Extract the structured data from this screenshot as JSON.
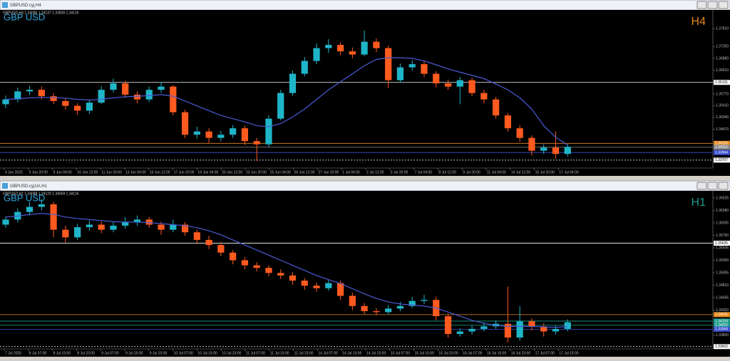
{
  "windows": [
    {
      "title": "GBPUSD.cyj,H4",
      "info": "GBPUSD,H4  1.34086 1.34137 1.33826 1.34116",
      "symbol": "GBP USD",
      "timeframe": "H4",
      "timeframe_color": "#e8891c",
      "up_color": "#1fb5c8",
      "down_color": "#ff5a1f",
      "ma_color": "#4a5cd6",
      "ylim": [
        1.3346,
        1.3839
      ],
      "yticks": [
        {
          "value": 1.3781,
          "label": "1.37810"
        },
        {
          "value": 1.3725,
          "label": "1.37250"
        },
        {
          "value": 1.3688,
          "label": "1.36880"
        },
        {
          "value": 1.3651,
          "label": "1.36510"
        },
        {
          "value": 1.3577,
          "label": "1.35770"
        },
        {
          "value": 1.3541,
          "label": "1.35410"
        },
        {
          "value": 1.3504,
          "label": "1.35040"
        },
        {
          "value": 1.3467,
          "label": "1.34670"
        }
      ],
      "levels": [
        {
          "price": 1.36131,
          "color": "#ffffff"
        },
        {
          "price": {
            "value": 1.3423,
            "label": "1.34230"
          },
          "color": "#e8891c"
        },
        {
          "price": {
            "value": 1.3411,
            "label": "1.34110"
          },
          "color": "#8a8a8a"
        },
        {
          "price": 1.33944,
          "color": "#3a4fd0"
        },
        {
          "price": 1.33707,
          "color": "#ffffff",
          "dashed": true
        }
      ],
      "time_labels": [
        "4 Jun 2025",
        "5 Jun 20:00",
        "9 Jun 04:00",
        "10 Jun 12:00",
        "11 Jun 20:00",
        "13 Jun 04:00",
        "16 Jun 12:00",
        "17 Jun 20:00",
        "19 Jun 04:00",
        "20 Jun 12:00",
        "23 Jun 20:00",
        "25 Jun 04:00",
        "26 Jun 12:00",
        "27 Jun 20:00",
        "1 Jul 04:00",
        "2 Jul 12:00",
        "3 Jul 20:00",
        "7 Jul 04:00",
        "8 Jul 12:00",
        "9 Jul 20:00",
        "11 Jul 04:00",
        "14 Jul 12:00",
        "15 Jul 20:00",
        "17 Jul 04:00"
      ],
      "candles": {
        "open": [
          1.3545,
          1.356,
          1.3585,
          1.359,
          1.357,
          1.3555,
          1.354,
          1.3525,
          1.355,
          1.359,
          1.361,
          1.3575,
          1.356,
          1.359,
          1.36,
          1.352,
          1.345,
          1.346,
          1.344,
          1.345,
          1.347,
          1.343,
          1.342,
          1.35,
          1.358,
          1.364,
          1.368,
          1.372,
          1.373,
          1.371,
          1.37,
          1.374,
          1.372,
          1.362,
          1.366,
          1.367,
          1.364,
          1.361,
          1.36,
          1.362,
          1.358,
          1.356,
          1.351,
          1.347,
          1.344,
          1.34,
          1.341,
          1.339
        ],
        "high": [
          1.3572,
          1.3597,
          1.3602,
          1.36,
          1.358,
          1.3565,
          1.3548,
          1.356,
          1.3602,
          1.3625,
          1.3618,
          1.3585,
          1.36,
          1.3615,
          1.3605,
          1.3528,
          1.3475,
          1.347,
          1.3462,
          1.348,
          1.3478,
          1.344,
          1.351,
          1.359,
          1.365,
          1.3692,
          1.3735,
          1.3748,
          1.3738,
          1.3722,
          1.3775,
          1.375,
          1.3728,
          1.3672,
          1.3682,
          1.3678,
          1.3648,
          1.3622,
          1.363,
          1.3628,
          1.359,
          1.3568,
          1.3518,
          1.348,
          1.3448,
          1.342,
          1.346,
          1.342
        ],
        "low": [
          1.3533,
          1.355,
          1.3573,
          1.356,
          1.3545,
          1.3528,
          1.3512,
          1.3515,
          1.3545,
          1.3582,
          1.3565,
          1.3548,
          1.3552,
          1.358,
          1.351,
          1.344,
          1.3438,
          1.3425,
          1.343,
          1.344,
          1.3418,
          1.3368,
          1.3412,
          1.3495,
          1.3572,
          1.3632,
          1.367,
          1.3705,
          1.3698,
          1.3688,
          1.3695,
          1.3708,
          1.3595,
          1.3612,
          1.365,
          1.363,
          1.3598,
          1.359,
          1.3545,
          1.357,
          1.3548,
          1.35,
          1.346,
          1.3428,
          1.3385,
          1.339,
          1.3375,
          1.3382
        ],
        "close": [
          1.356,
          1.3585,
          1.359,
          1.357,
          1.3555,
          1.354,
          1.3525,
          1.355,
          1.359,
          1.361,
          1.3575,
          1.356,
          1.359,
          1.36,
          1.352,
          1.345,
          1.346,
          1.344,
          1.345,
          1.347,
          1.343,
          1.342,
          1.35,
          1.358,
          1.364,
          1.368,
          1.372,
          1.373,
          1.371,
          1.37,
          1.374,
          1.372,
          1.362,
          1.366,
          1.367,
          1.364,
          1.361,
          1.36,
          1.362,
          1.358,
          1.356,
          1.351,
          1.347,
          1.344,
          1.34,
          1.341,
          1.339,
          1.3412
        ]
      },
      "ma": [
        1.356,
        1.3562,
        1.3565,
        1.3566,
        1.3566,
        1.3564,
        1.356,
        1.3558,
        1.356,
        1.3565,
        1.3568,
        1.357,
        1.3572,
        1.3575,
        1.357,
        1.3555,
        1.354,
        1.3525,
        1.351,
        1.35,
        1.349,
        1.3478,
        1.3475,
        1.3485,
        1.3505,
        1.353,
        1.356,
        1.359,
        1.3615,
        1.364,
        1.3665,
        1.3685,
        1.369,
        1.369,
        1.3688,
        1.368,
        1.3668,
        1.3655,
        1.3645,
        1.3635,
        1.3625,
        1.3608,
        1.359,
        1.3565,
        1.353,
        1.3478,
        1.3442,
        1.3418
      ]
    },
    {
      "title": "GBPUSD.cyj1m,H1",
      "info": "GBPUSD,H1  1.34088 1.34129 1.34059 1.34116",
      "symbol": "GBP USD",
      "timeframe": "H1",
      "timeframe_color": "#1a9c8c",
      "up_color": "#1fb5c8",
      "down_color": "#ff5a1f",
      "ma_color": "#4a5cd6",
      "ylim": [
        1.33557,
        1.36665
      ],
      "yticks": [
        1.36525,
        {
          "value": 1.3628,
          "label": "1.36280"
        },
        1.36035,
        {
          "value": 1.3579,
          "label": "1.35790"
        },
        1.35545,
        {
          "value": 1.353,
          "label": "1.35300"
        },
        1.35055,
        {
          "value": 1.3481,
          "label": "1.34810"
        },
        1.34565,
        {
          "value": 1.3432,
          "label": "1.34320"
        },
        {
          "value": 1.3383,
          "label": "1.33830"
        }
      ],
      "levels": [
        {
          "price": 1.35635,
          "color": "#ffffff"
        },
        {
          "price": 1.34231,
          "color": "#e8891c"
        },
        {
          "price": 1.34104,
          "color": "#1a9c8c"
        },
        {
          "price": 1.34022,
          "color": "#1a9c8c"
        },
        {
          "price": 1.33944,
          "color": "#3a4fd0"
        },
        {
          "price": 1.33602,
          "color": "#ffffff",
          "dashed": true
        }
      ],
      "time_labels": [
        "7 Jul 2025",
        "8 Jul 07:00",
        "8 Jul 15:00",
        "8 Jul 23:00",
        "9 Jul 07:00",
        "9 Jul 15:00",
        "9 Jul 23:00",
        "10 Jul 07:00",
        "10 Jul 15:00",
        "10 Jul 23:00",
        "11 Jul 07:00",
        "11 Jul 15:00",
        "11 Jul 23:00",
        "14 Jul 07:00",
        "14 Jul 15:00",
        "14 Jul 23:00",
        "15 Jul 07:00",
        "15 Jul 15:00",
        "15 Jul 23:00",
        "16 Jul 07:00",
        "16 Jul 15:00",
        "16 Jul 23:00",
        "17 Jul 07:00",
        "17 Jul 15:00"
      ],
      "candles": {
        "open": [
          1.36,
          1.361,
          1.3625,
          1.3635,
          1.364,
          1.359,
          1.3575,
          1.3595,
          1.36,
          1.359,
          1.3598,
          1.3605,
          1.361,
          1.36,
          1.359,
          1.36,
          1.3585,
          1.357,
          1.356,
          1.3545,
          1.353,
          1.352,
          1.3515,
          1.3505,
          1.35,
          1.349,
          1.348,
          1.3475,
          1.3485,
          1.346,
          1.344,
          1.343,
          1.3428,
          1.3435,
          1.344,
          1.345,
          1.3452,
          1.342,
          1.3385,
          1.339,
          1.3395,
          1.34,
          1.3405,
          1.3378,
          1.341,
          1.34,
          1.339,
          1.3395
        ],
        "high": [
          1.3616,
          1.3632,
          1.3645,
          1.365,
          1.3645,
          1.3598,
          1.3602,
          1.3608,
          1.3606,
          1.3605,
          1.3615,
          1.3618,
          1.3615,
          1.3606,
          1.361,
          1.3605,
          1.359,
          1.3578,
          1.3566,
          1.355,
          1.3536,
          1.3526,
          1.352,
          1.3512,
          1.3506,
          1.3495,
          1.3486,
          1.3492,
          1.349,
          1.3466,
          1.3446,
          1.3436,
          1.3442,
          1.3448,
          1.3458,
          1.3462,
          1.3458,
          1.3425,
          1.3396,
          1.3402,
          1.3408,
          1.3412,
          1.3478,
          1.344,
          1.3416,
          1.3406,
          1.3402,
          1.3414
        ],
        "low": [
          1.3594,
          1.3604,
          1.3618,
          1.3628,
          1.3575,
          1.3565,
          1.357,
          1.3588,
          1.3583,
          1.3585,
          1.3592,
          1.3598,
          1.3594,
          1.358,
          1.3585,
          1.3578,
          1.3562,
          1.3552,
          1.3538,
          1.3522,
          1.3512,
          1.3508,
          1.3498,
          1.3493,
          1.3482,
          1.3472,
          1.3468,
          1.347,
          1.3452,
          1.3432,
          1.3424,
          1.3422,
          1.3424,
          1.343,
          1.3436,
          1.3444,
          1.3412,
          1.3378,
          1.338,
          1.3384,
          1.339,
          1.3395,
          1.3368,
          1.3372,
          1.3392,
          1.338,
          1.3384,
          1.339
        ],
        "close": [
          1.361,
          1.3625,
          1.3635,
          1.364,
          1.359,
          1.3575,
          1.3595,
          1.36,
          1.359,
          1.3598,
          1.3605,
          1.361,
          1.36,
          1.359,
          1.36,
          1.3585,
          1.357,
          1.356,
          1.3545,
          1.353,
          1.352,
          1.3515,
          1.3505,
          1.35,
          1.349,
          1.348,
          1.3475,
          1.3485,
          1.346,
          1.344,
          1.343,
          1.3428,
          1.3435,
          1.344,
          1.345,
          1.3452,
          1.342,
          1.3385,
          1.339,
          1.3395,
          1.34,
          1.3405,
          1.3378,
          1.341,
          1.34,
          1.339,
          1.3395,
          1.3408
        ]
      },
      "ma": [
        1.3615,
        1.3617,
        1.362,
        1.3622,
        1.362,
        1.3615,
        1.3612,
        1.361,
        1.3608,
        1.3606,
        1.3605,
        1.3605,
        1.3604,
        1.3602,
        1.36,
        1.3598,
        1.3594,
        1.3588,
        1.358,
        1.357,
        1.356,
        1.355,
        1.354,
        1.353,
        1.352,
        1.351,
        1.35,
        1.3492,
        1.3484,
        1.3474,
        1.3464,
        1.3455,
        1.3448,
        1.3444,
        1.3442,
        1.344,
        1.3436,
        1.3428,
        1.342,
        1.3412,
        1.3406,
        1.3402,
        1.34,
        1.34,
        1.34,
        1.3399,
        1.3398,
        1.34
      ]
    }
  ]
}
